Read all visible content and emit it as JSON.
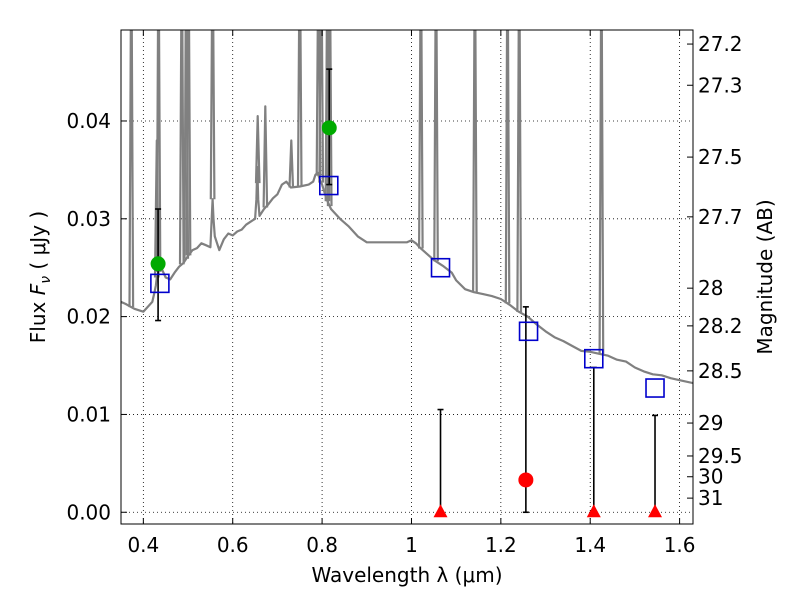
{
  "chart_data": {
    "type": "scatter",
    "xlabel": "Wavelength  λ (μm)",
    "ylabel": "Flux  F_ν  ( μJy )",
    "ylabel_parts": {
      "prefix": "Flux  ",
      "symbol": "F",
      "subscript": "ν",
      "suffix": "  ( μJy )"
    },
    "y2label": "Magnitude (AB)",
    "xlim": [
      0.35,
      1.63
    ],
    "ylim": [
      -0.0012,
      0.0493
    ],
    "grid": true,
    "x_ticks": [
      {
        "value": 0.4,
        "label": "0.4"
      },
      {
        "value": 0.6,
        "label": "0.6"
      },
      {
        "value": 0.8,
        "label": "0.8"
      },
      {
        "value": 1.0,
        "label": "1"
      },
      {
        "value": 1.2,
        "label": "1.2"
      },
      {
        "value": 1.4,
        "label": "1.4"
      },
      {
        "value": 1.6,
        "label": "1.6"
      }
    ],
    "y_ticks": [
      {
        "value": 0.0,
        "label": "0.00"
      },
      {
        "value": 0.01,
        "label": "0.01"
      },
      {
        "value": 0.02,
        "label": "0.02"
      },
      {
        "value": 0.03,
        "label": "0.03"
      },
      {
        "value": 0.04,
        "label": "0.04"
      }
    ],
    "y2_ticks": [
      {
        "value": 27.2,
        "label": "27.2"
      },
      {
        "value": 27.3,
        "label": "27.3"
      },
      {
        "value": 27.5,
        "label": "27.5"
      },
      {
        "value": 27.7,
        "label": "27.7"
      },
      {
        "value": 28.0,
        "label": "28"
      },
      {
        "value": 28.2,
        "label": "28.2"
      },
      {
        "value": 28.5,
        "label": "28.5"
      },
      {
        "value": 29.0,
        "label": "29"
      },
      {
        "value": 29.5,
        "label": "29.5"
      },
      {
        "value": 30.0,
        "label": "30"
      },
      {
        "value": 31.0,
        "label": "31"
      }
    ],
    "series": [
      {
        "kind": "model-spectrum-line",
        "color": "#808080",
        "x": [
          0.35,
          0.36,
          0.38,
          0.4,
          0.42,
          0.425,
          0.428,
          0.43,
          0.432,
          0.435,
          0.44,
          0.45,
          0.46,
          0.47,
          0.48,
          0.49,
          0.5,
          0.51,
          0.52,
          0.53,
          0.54,
          0.55,
          0.551,
          0.553,
          0.555,
          0.557,
          0.56,
          0.57,
          0.58,
          0.59,
          0.6,
          0.61,
          0.62,
          0.63,
          0.64,
          0.65,
          0.653,
          0.655,
          0.657,
          0.66,
          0.67,
          0.68,
          0.69,
          0.7,
          0.71,
          0.72,
          0.73,
          0.75,
          0.77,
          0.78,
          0.785,
          0.79,
          0.795,
          0.8,
          0.81,
          0.82,
          0.83,
          0.84,
          0.86,
          0.88,
          0.9,
          0.92,
          0.94,
          0.96,
          0.98,
          0.99,
          1.0,
          1.01,
          1.02,
          1.03,
          1.05,
          1.07,
          1.09,
          1.1,
          1.12,
          1.14,
          1.16,
          1.18,
          1.2,
          1.22,
          1.24,
          1.26,
          1.28,
          1.3,
          1.32,
          1.34,
          1.36,
          1.38,
          1.4,
          1.41,
          1.42,
          1.44,
          1.46,
          1.48,
          1.5,
          1.52,
          1.54,
          1.56,
          1.58,
          1.6,
          1.63
        ],
        "y": [
          0.0215,
          0.0213,
          0.0208,
          0.0205,
          0.0215,
          0.0225,
          0.0232,
          0.024,
          0.0243,
          0.0247,
          0.025,
          0.024,
          0.0238,
          0.0245,
          0.0251,
          0.0255,
          0.0262,
          0.0268,
          0.027,
          0.0275,
          0.0273,
          0.0271,
          0.028,
          0.03,
          0.032,
          0.03,
          0.0282,
          0.0268,
          0.0279,
          0.0285,
          0.0283,
          0.0287,
          0.0289,
          0.0294,
          0.0297,
          0.03,
          0.032,
          0.0353,
          0.032,
          0.0303,
          0.031,
          0.0315,
          0.0321,
          0.0325,
          0.0335,
          0.0338,
          0.0332,
          0.0333,
          0.0335,
          0.0338,
          0.0345,
          0.0347,
          0.034,
          0.0335,
          0.032,
          0.031,
          0.0305,
          0.03,
          0.0292,
          0.0282,
          0.0276,
          0.0276,
          0.0276,
          0.0276,
          0.0276,
          0.0276,
          0.0278,
          0.0275,
          0.027,
          0.0266,
          0.0258,
          0.0252,
          0.0245,
          0.0237,
          0.0228,
          0.0225,
          0.0223,
          0.0221,
          0.0218,
          0.0212,
          0.0205,
          0.02,
          0.0192,
          0.0185,
          0.0179,
          0.0175,
          0.017,
          0.0165,
          0.0164,
          0.0163,
          0.0162,
          0.016,
          0.0156,
          0.0154,
          0.0148,
          0.0144,
          0.0141,
          0.014,
          0.0137,
          0.0135,
          0.0132
        ],
        "emission_lines": [
          {
            "x": 0.373,
            "top": 0.06
          },
          {
            "x": 0.43,
            "top": 0.038
          },
          {
            "x": 0.434,
            "top": 0.06
          },
          {
            "x": 0.486,
            "top": 0.06
          },
          {
            "x": 0.496,
            "top": 0.06
          },
          {
            "x": 0.501,
            "top": 0.06
          },
          {
            "x": 0.555,
            "top": 0.06
          },
          {
            "x": 0.656,
            "top": 0.0405
          },
          {
            "x": 0.673,
            "top": 0.0415
          },
          {
            "x": 0.731,
            "top": 0.038
          },
          {
            "x": 0.75,
            "top": 0.06
          },
          {
            "x": 0.792,
            "top": 0.06
          },
          {
            "x": 0.798,
            "top": 0.06
          },
          {
            "x": 0.812,
            "top": 0.06
          },
          {
            "x": 0.817,
            "top": 0.06
          },
          {
            "x": 1.021,
            "top": 0.06
          },
          {
            "x": 1.055,
            "top": 0.06
          },
          {
            "x": 1.142,
            "top": 0.06
          },
          {
            "x": 1.215,
            "top": 0.06
          },
          {
            "x": 1.241,
            "top": 0.06
          },
          {
            "x": 1.425,
            "top": 0.06
          }
        ]
      },
      {
        "kind": "open-squares",
        "color": "#0000cc",
        "points": [
          [
            0.437,
            0.0234
          ],
          [
            0.815,
            0.0334
          ],
          [
            1.065,
            0.025
          ],
          [
            1.262,
            0.0185
          ],
          [
            1.408,
            0.0157
          ],
          [
            1.545,
            0.0127
          ]
        ]
      },
      {
        "kind": "detections",
        "color": "#00aa00",
        "points": [
          {
            "x": 0.433,
            "y": 0.0254,
            "ylo": 0.0196,
            "yhi": 0.031
          },
          {
            "x": 0.816,
            "y": 0.0393,
            "ylo": 0.0335,
            "yhi": 0.0453
          }
        ]
      },
      {
        "kind": "weak-detection",
        "color": "#ff0000",
        "points": [
          {
            "x": 1.256,
            "y": 0.0033,
            "ylo": 0.0,
            "yhi": 0.021
          }
        ]
      },
      {
        "kind": "upper-limits",
        "color": "#ff0000",
        "points": [
          {
            "x": 1.065,
            "y": 0.0,
            "yhi": 0.0105
          },
          {
            "x": 1.408,
            "y": 0.0,
            "yhi": 0.0148
          },
          {
            "x": 1.545,
            "y": 0.0,
            "yhi": 0.0099
          }
        ]
      }
    ]
  }
}
